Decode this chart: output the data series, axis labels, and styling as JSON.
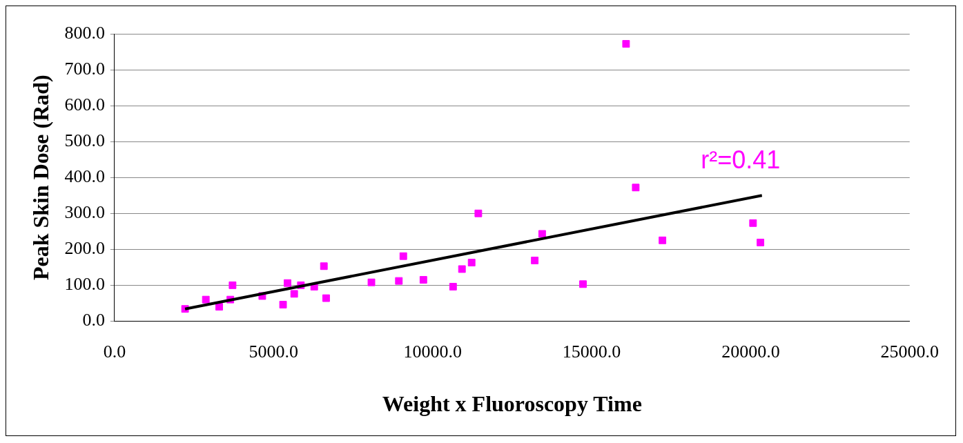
{
  "chart_data": {
    "type": "scatter",
    "xlabel": "Weight x Fluoroscopy Time",
    "ylabel": "Peak Skin Dose (Rad)",
    "x": [
      2218,
      2871,
      3291,
      3641,
      3711,
      4645,
      5299,
      5439,
      5649,
      5859,
      6279,
      6583,
      6653,
      8077,
      8940,
      9080,
      9711,
      10644,
      10924,
      11228,
      11438,
      13212,
      13445,
      14729,
      16083,
      16387,
      17227,
      20075,
      20308
    ],
    "series": [
      {
        "type": "scatter",
        "color": "#ff00ff",
        "marker": "square",
        "values": [
          34,
          60,
          40,
          60,
          100,
          70,
          46,
          106,
          76,
          100,
          96,
          153,
          64,
          108,
          112,
          181,
          115,
          96,
          145,
          163,
          300,
          169,
          243,
          103,
          772,
          372,
          225,
          273,
          219
        ]
      },
      {
        "type": "line",
        "color": "#000000",
        "marker": "none",
        "x": [
          2218,
          20355
        ],
        "values": [
          34,
          350
        ]
      }
    ],
    "xlim": [
      0,
      25000
    ],
    "xticks": [
      {
        "value": 0,
        "label": "0.0"
      },
      {
        "value": 5000,
        "label": "5000.0"
      },
      {
        "value": 10000,
        "label": "10000.0"
      },
      {
        "value": 15000,
        "label": "15000.0"
      },
      {
        "value": 20000,
        "label": "20000.0"
      },
      {
        "value": 25000,
        "label": "25000.0"
      }
    ],
    "ylim": [
      0,
      800
    ],
    "yticks": [
      {
        "value": 0,
        "label": "0.0"
      },
      {
        "value": 100,
        "label": "100.0"
      },
      {
        "value": 200,
        "label": "200.0"
      },
      {
        "value": 300,
        "label": "300.0"
      },
      {
        "value": 400,
        "label": "400.0"
      },
      {
        "value": 500,
        "label": "500.0"
      },
      {
        "value": 600,
        "label": "600.0"
      },
      {
        "value": 700,
        "label": "700.0"
      },
      {
        "value": 800,
        "label": "800.0"
      }
    ],
    "grid": "y",
    "legend": false,
    "annotations": [
      "r²=0.41"
    ]
  }
}
